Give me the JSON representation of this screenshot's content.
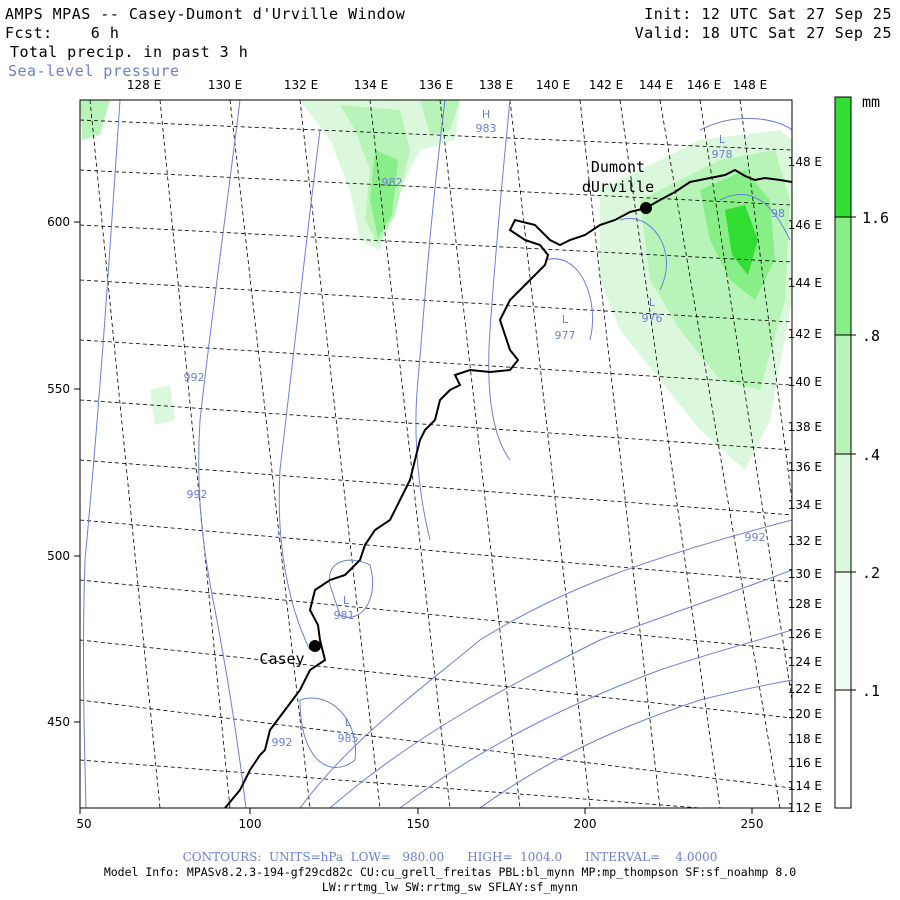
{
  "header": {
    "title": "AMPS MPAS -- Casey-Dumont d'Urville Window",
    "forecast": "Fcst:    6 h",
    "field": "Total precip. in past 3 h",
    "overlay": "Sea-level pressure",
    "init": "Init: 12 UTC Sat 27 Sep 25",
    "valid": "Valid: 18 UTC Sat 27 Sep 25"
  },
  "map": {
    "top_lon_labels": [
      "128 E",
      "130 E",
      "132 E",
      "134 E",
      "136 E",
      "138 E",
      "140 E",
      "142 E",
      "144 E",
      "146 E",
      "148 E"
    ],
    "right_lon_labels": [
      "148 E",
      "146 E",
      "144 E",
      "142 E",
      "140 E",
      "138 E",
      "136 E",
      "134 E",
      "132 E",
      "130 E",
      "128 E",
      "126 E",
      "124 E",
      "122 E",
      "120 E",
      "118 E",
      "116 E",
      "114 E",
      "112 E"
    ],
    "x_ticks": [
      "50",
      "100",
      "150",
      "200",
      "250"
    ],
    "y_ticks": [
      "600",
      "550",
      "500",
      "450"
    ],
    "stations": [
      {
        "name_line1": "Dumont",
        "name_line2": "dUrville"
      },
      {
        "name_line1": "Casey",
        "name_line2": ""
      }
    ],
    "pressure_labels": [
      "H",
      "983",
      "L",
      "978",
      "L",
      "976",
      "L",
      "977",
      "992",
      "992",
      "992",
      "L",
      "981",
      "L",
      "985",
      "992",
      "982",
      "98"
    ]
  },
  "legend": {
    "unit": "mm",
    "values": [
      "1.6",
      ".8",
      ".4",
      ".2",
      ".1"
    ],
    "colors": [
      "#33dd33",
      "#88ee88",
      "#b8f4b8",
      "#dcf8dc",
      "#f0fcf0"
    ]
  },
  "footer": {
    "contours": "CONTOURS:  UNITS=hPa  LOW=   980.00      HIGH=  1004.0      INTERVAL=    4.0000",
    "model_info": "Model Info: MPASv8.2.3-194-gf29cd82c CU:cu_grell_freitas PBL:bl_mynn MP:mp_thompson SF:sf_noahmp 8.0",
    "physics": "LW:rrtmg_lw SW:rrtmg_sw SFLAY:sf_mynn"
  }
}
